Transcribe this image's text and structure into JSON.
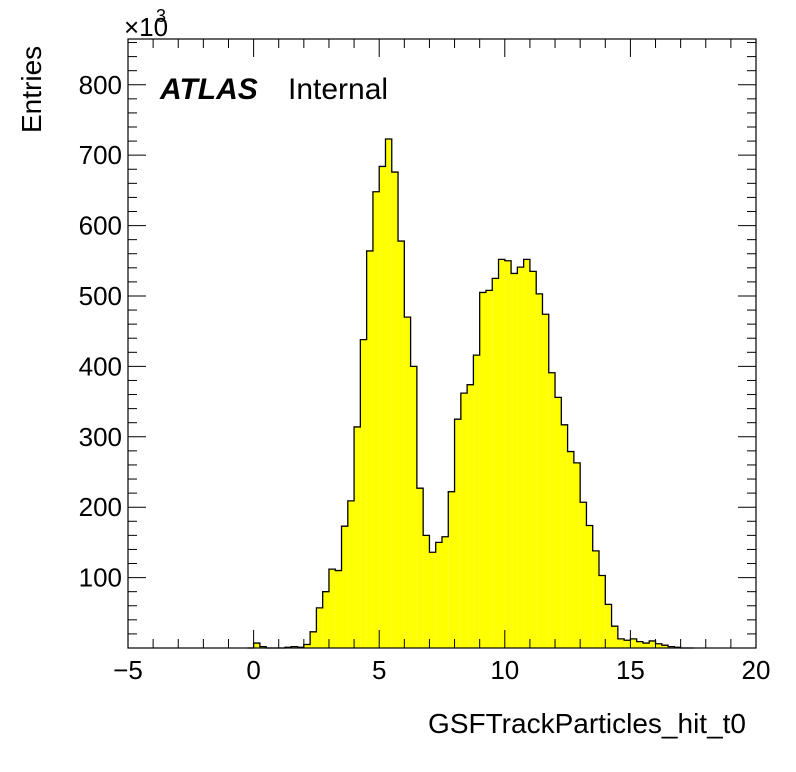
{
  "chart_data": {
    "type": "bar",
    "style": "step-histogram",
    "xlabel": "GSFTrackParticles_hit_t0",
    "ylabel": "Entries",
    "y_multiplier": "×10",
    "y_multiplier_exponent": "3",
    "experiment": "ATLAS",
    "status": "Internal",
    "xlim": [
      -5,
      20
    ],
    "ylim": [
      0,
      865
    ],
    "x_ticks": [
      -5,
      0,
      5,
      10,
      15,
      20
    ],
    "x_tick_labels": [
      "−5",
      "0",
      "5",
      "10",
      "15",
      "20"
    ],
    "y_ticks": [
      100,
      200,
      300,
      400,
      500,
      600,
      700,
      800
    ],
    "y_tick_labels": [
      "100",
      "200",
      "300",
      "400",
      "500",
      "600",
      "700",
      "800"
    ],
    "grid": false,
    "fill_color": "#ffff00",
    "line_color": "#000000",
    "bin_width": 0.25,
    "bin_low_edges": [
      -0.25,
      0.0,
      0.25,
      0.5,
      0.75,
      1.0,
      1.25,
      1.5,
      1.75,
      2.0,
      2.25,
      2.5,
      2.75,
      3.0,
      3.25,
      3.5,
      3.75,
      4.0,
      4.25,
      4.5,
      4.75,
      5.0,
      5.25,
      5.5,
      5.75,
      6.0,
      6.25,
      6.5,
      6.75,
      7.0,
      7.25,
      7.5,
      7.75,
      8.0,
      8.25,
      8.5,
      8.75,
      9.0,
      9.25,
      9.5,
      9.75,
      10.0,
      10.25,
      10.5,
      10.75,
      11.0,
      11.25,
      11.5,
      11.75,
      12.0,
      12.25,
      12.5,
      12.75,
      13.0,
      13.25,
      13.5,
      13.75,
      14.0,
      14.25,
      14.5,
      14.75,
      15.0,
      15.25,
      15.5,
      15.75,
      16.0,
      16.25,
      16.5,
      16.75,
      17.0,
      17.25
    ],
    "values": [
      0,
      7,
      2,
      0,
      0,
      0,
      1,
      2,
      1,
      5,
      23,
      57,
      80,
      112,
      110,
      173,
      209,
      314,
      438,
      564,
      648,
      684,
      723,
      676,
      578,
      470,
      400,
      227,
      160,
      136,
      150,
      158,
      222,
      325,
      362,
      374,
      416,
      505,
      508,
      525,
      552,
      550,
      532,
      541,
      552,
      535,
      503,
      474,
      391,
      356,
      317,
      279,
      263,
      207,
      174,
      138,
      103,
      62,
      31,
      13,
      11,
      13,
      9,
      7,
      10,
      6,
      4,
      2,
      1,
      0,
      0
    ]
  }
}
